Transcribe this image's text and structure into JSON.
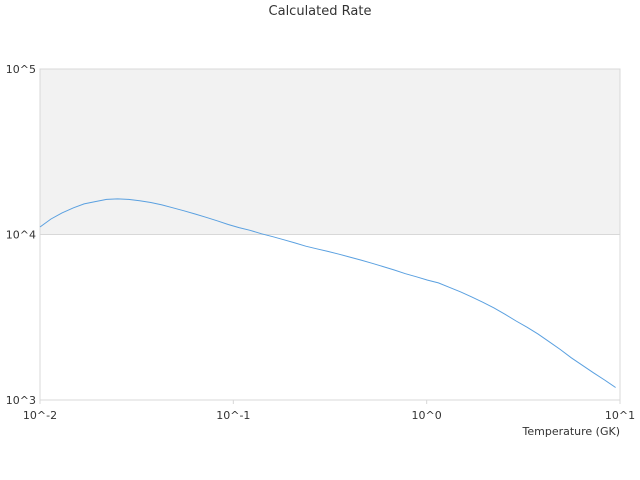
{
  "chart_data": {
    "type": "line",
    "title": "Calculated Rate",
    "xlabel": "Temperature (GK)",
    "ylabel": "",
    "x_scale": "log",
    "y_scale": "log",
    "xlim": [
      0.01,
      10
    ],
    "ylim": [
      1000,
      100000
    ],
    "x_ticks": [
      {
        "value": 0.01,
        "label": "10^-2"
      },
      {
        "value": 0.1,
        "label": "10^-1"
      },
      {
        "value": 1,
        "label": "10^0"
      },
      {
        "value": 10,
        "label": "10^1"
      }
    ],
    "y_ticks": [
      {
        "value": 1000,
        "label": "10^3"
      },
      {
        "value": 10000,
        "label": "10^4"
      },
      {
        "value": 100000,
        "label": "10^5"
      }
    ],
    "alternating_band_color": "#f2f2f2",
    "series": [
      {
        "color": "#5aa0e0",
        "x": [
          0.01,
          0.0114,
          0.013,
          0.0149,
          0.0169,
          0.0193,
          0.0221,
          0.0252,
          0.0287,
          0.0328,
          0.0374,
          0.0427,
          0.0487,
          0.0556,
          0.0634,
          0.0723,
          0.0825,
          0.0941,
          0.107,
          0.122,
          0.14,
          0.16,
          0.182,
          0.208,
          0.237,
          0.27,
          0.308,
          0.352,
          0.401,
          0.458,
          0.523,
          0.596,
          0.68,
          0.776,
          0.886,
          1.01,
          1.15,
          1.31,
          1.5,
          1.71,
          1.95,
          2.23,
          2.54,
          2.9,
          3.31,
          3.77,
          4.3,
          4.91,
          5.6,
          6.39,
          7.29,
          8.32,
          9.49
        ],
        "y": [
          11100,
          12400,
          13500,
          14500,
          15300,
          15800,
          16300,
          16400,
          16300,
          16000,
          15600,
          15100,
          14500,
          13900,
          13300,
          12700,
          12100,
          11500,
          11000,
          10600,
          10100,
          9700,
          9300,
          8900,
          8500,
          8200,
          7900,
          7600,
          7300,
          7000,
          6700,
          6400,
          6100,
          5800,
          5550,
          5300,
          5100,
          4800,
          4500,
          4200,
          3900,
          3600,
          3300,
          3000,
          2750,
          2500,
          2250,
          2020,
          1800,
          1620,
          1460,
          1320,
          1190
        ]
      }
    ]
  }
}
